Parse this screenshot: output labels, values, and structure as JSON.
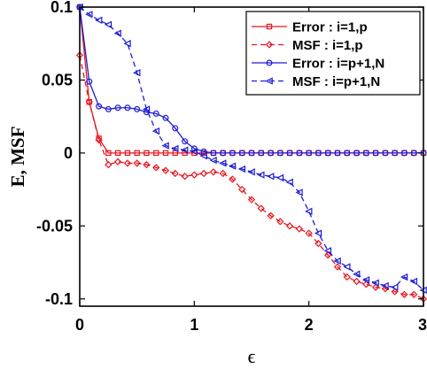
{
  "chart_data": {
    "type": "line",
    "xlabel": "ϵ",
    "ylabel": "E, MSF",
    "xlim": [
      0,
      3
    ],
    "ylim": [
      -0.105,
      0.1
    ],
    "xticks": [
      0,
      1,
      2,
      3
    ],
    "xtick_labels": [
      "0",
      "1",
      "2",
      "3"
    ],
    "yticks": [
      0.1,
      0.05,
      0,
      -0.05,
      -0.1
    ],
    "ytick_labels": [
      "0.1",
      "0.05",
      "0",
      "-0.05",
      "-0.1"
    ],
    "grid": false,
    "legend_position": "top-right",
    "x": [
      0,
      0.083,
      0.167,
      0.25,
      0.333,
      0.417,
      0.5,
      0.583,
      0.667,
      0.75,
      0.833,
      0.917,
      1.0,
      1.083,
      1.167,
      1.25,
      1.333,
      1.417,
      1.5,
      1.583,
      1.667,
      1.75,
      1.833,
      1.917,
      2.0,
      2.083,
      2.167,
      2.25,
      2.333,
      2.417,
      2.5,
      2.583,
      2.667,
      2.75,
      2.833,
      2.917,
      3.0
    ],
    "series": [
      {
        "name": "Error : i=1,p",
        "color": "#e8141e",
        "line": "solid",
        "marker": "square",
        "values": [
          0.1,
          0.035,
          0.01,
          0,
          0,
          0,
          0,
          0,
          0,
          0,
          0,
          0,
          0,
          0,
          0,
          0,
          0,
          0,
          0,
          0,
          0,
          0,
          0,
          0,
          0,
          0,
          0,
          0,
          0,
          0,
          0,
          0,
          0,
          0,
          0,
          0,
          0
        ]
      },
      {
        "name": "MSF : i=1,p",
        "color": "#e8141e",
        "line": "dashed",
        "marker": "diamond",
        "values": [
          0.067,
          0.035,
          0.009,
          -0.008,
          -0.006,
          -0.007,
          -0.007,
          -0.008,
          -0.01,
          -0.012,
          -0.014,
          -0.016,
          -0.015,
          -0.014,
          -0.013,
          -0.014,
          -0.018,
          -0.025,
          -0.032,
          -0.038,
          -0.043,
          -0.047,
          -0.05,
          -0.052,
          -0.055,
          -0.062,
          -0.07,
          -0.078,
          -0.085,
          -0.088,
          -0.09,
          -0.092,
          -0.093,
          -0.095,
          -0.097,
          -0.097,
          -0.1
        ]
      },
      {
        "name": "Error : i=p+1,N",
        "color": "#1c1cd6",
        "line": "solid",
        "marker": "circle",
        "values": [
          0.1,
          0.049,
          0.032,
          0.03,
          0.031,
          0.031,
          0.03,
          0.028,
          0.027,
          0.024,
          0.017,
          0.008,
          0.003,
          0.001,
          0,
          0,
          0,
          0,
          0,
          0,
          0,
          0,
          0,
          0,
          0,
          0,
          0,
          0,
          0,
          0,
          0,
          0,
          0,
          0,
          0,
          0,
          0
        ]
      },
      {
        "name": "MSF : i=p+1,N",
        "color": "#1c1cd6",
        "line": "dashed",
        "marker": "triangle-left",
        "values": [
          0.1,
          0.095,
          0.091,
          0.088,
          0.082,
          0.075,
          0.055,
          0.03,
          0.015,
          0.005,
          0.003,
          0.002,
          0.001,
          -0.002,
          -0.005,
          -0.007,
          -0.009,
          -0.011,
          -0.013,
          -0.015,
          -0.016,
          -0.017,
          -0.02,
          -0.027,
          -0.04,
          -0.055,
          -0.067,
          -0.074,
          -0.078,
          -0.083,
          -0.087,
          -0.089,
          -0.091,
          -0.092,
          -0.085,
          -0.088,
          -0.094
        ]
      }
    ]
  }
}
